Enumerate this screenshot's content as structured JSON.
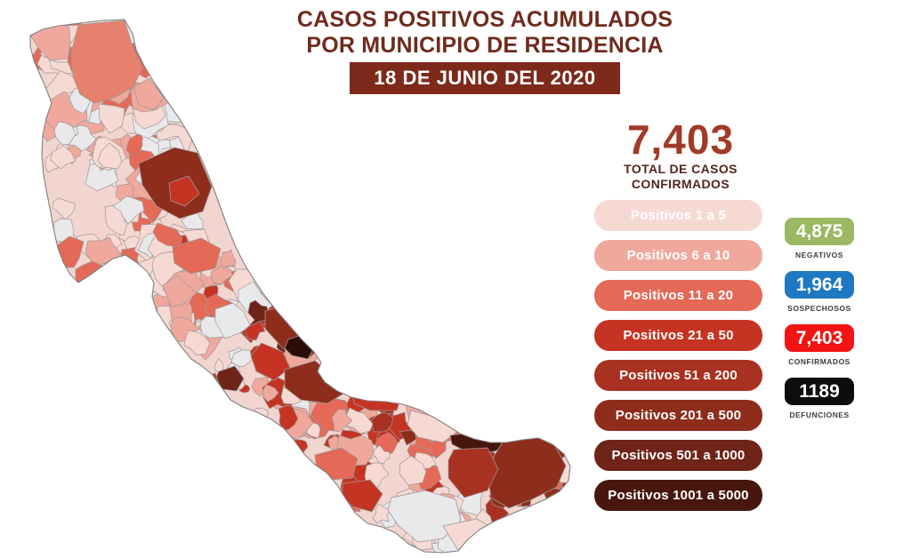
{
  "header": {
    "title_line1": "CASOS POSITIVOS ACUMULADOS",
    "title_line2": "POR MUNICIPIO DE RESIDENCIA",
    "date_banner": "18 DE JUNIO DEL 2020"
  },
  "summary": {
    "total_value": "7,403",
    "total_label_line1": "TOTAL DE CASOS",
    "total_label_line2": "CONFIRMADOS"
  },
  "legend": {
    "items": [
      {
        "label": "Positivos 1 a 5",
        "color": "#F7D9D3"
      },
      {
        "label": "Positivos 6 a 10",
        "color": "#F0A89C"
      },
      {
        "label": "Positivos 11 a 20",
        "color": "#E56957"
      },
      {
        "label": "Positivos 21 a 50",
        "color": "#C53422"
      },
      {
        "label": "Positivos 51 a 200",
        "color": "#A93121"
      },
      {
        "label": "Positivos 201 a 500",
        "color": "#8E2D1C"
      },
      {
        "label": "Positivos 501 a 1000",
        "color": "#6E2418"
      },
      {
        "label": "Positivos 1001 a 5000",
        "color": "#47170E"
      }
    ]
  },
  "stats": [
    {
      "value": "4,875",
      "label": "NEGATIVOS",
      "color": "#9BB862"
    },
    {
      "value": "1,964",
      "label": "SOSPECHOSOS",
      "color": "#1E79C2"
    },
    {
      "value": "7,403",
      "label": "CONFIRMADOS",
      "color": "#F41313"
    },
    {
      "value": "1189",
      "label": "DEFUNCIONES",
      "color": "#0D0D0D"
    }
  ],
  "map": {
    "base_color": "#F3D5CF",
    "no_data_color": "#E9E9EB",
    "border_color": "#9A9A9A",
    "outline_color": "#808080",
    "hotspot_max_color": "#2F0D07"
  }
}
